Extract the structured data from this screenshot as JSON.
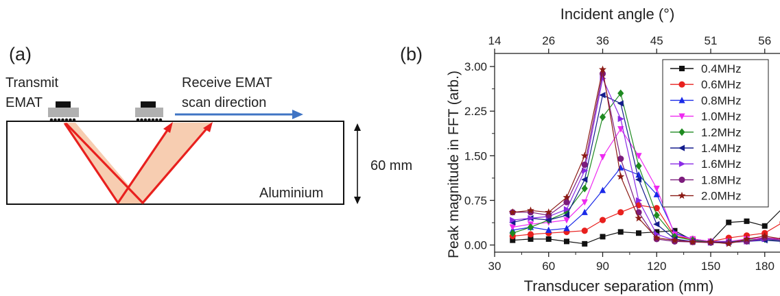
{
  "panel_a": {
    "label": "(a)",
    "transmit_label_line1": "Transmit",
    "transmit_label_line2": "EMAT",
    "receive_label_line1": "Receive EMAT",
    "receive_label_line2": "scan direction",
    "thickness_label": "60 mm",
    "material_label": "Aluminium",
    "colors": {
      "ray": "#e8201e",
      "beam_fill": "#f6c8a8",
      "scan_arrow": "#3f74c4",
      "emat_housing": "#b0b0b0",
      "magnet": "#111111"
    }
  },
  "panel_b": {
    "label": "(b)"
  },
  "chart_data": {
    "type": "line",
    "xlabel": "Transducer separation (mm)",
    "ylabel": "Peak magnitude in FFT (arb.)",
    "top_axis_label": "Incident angle (°)",
    "xlim": [
      30,
      190
    ],
    "ylim": [
      -0.12,
      3.22
    ],
    "x_ticks": [
      "30",
      "60",
      "90",
      "120",
      "150",
      "180"
    ],
    "y_ticks": [
      "0.00",
      "0.75",
      "1.50",
      "2.25",
      "3.00"
    ],
    "top_ticks": [
      {
        "label": "14",
        "x": 30
      },
      {
        "label": "26",
        "x": 60
      },
      {
        "label": "36",
        "x": 90
      },
      {
        "label": "45",
        "x": 120
      },
      {
        "label": "51",
        "x": 150
      },
      {
        "label": "56",
        "x": 180
      }
    ],
    "legend_position": "top-right",
    "x": [
      40,
      50,
      60,
      70,
      80,
      90,
      100,
      110,
      120,
      130,
      140,
      150,
      160,
      170,
      180,
      190
    ],
    "series": [
      {
        "name": "0.4MHz",
        "color": "#111111",
        "marker": "square",
        "values": [
          0.08,
          0.1,
          0.1,
          0.06,
          0.02,
          0.14,
          0.22,
          0.2,
          0.22,
          0.24,
          0.08,
          0.06,
          0.38,
          0.4,
          0.32,
          0.62
        ]
      },
      {
        "name": "0.6MHz",
        "color": "#e8201e",
        "marker": "circle",
        "values": [
          0.15,
          0.18,
          0.2,
          0.22,
          0.24,
          0.42,
          0.55,
          0.67,
          0.62,
          0.15,
          0.1,
          0.06,
          0.12,
          0.16,
          0.2,
          0.38
        ]
      },
      {
        "name": "0.8MHz",
        "color": "#1a2ae8",
        "marker": "triangle-up",
        "values": [
          0.25,
          0.3,
          0.25,
          0.28,
          0.55,
          0.92,
          1.3,
          1.18,
          0.85,
          0.2,
          0.1,
          0.06,
          0.06,
          0.08,
          0.1,
          0.08
        ]
      },
      {
        "name": "1.0MHz",
        "color": "#ee2af0",
        "marker": "triangle-down",
        "values": [
          0.3,
          0.35,
          0.38,
          0.42,
          0.72,
          1.48,
          1.95,
          1.5,
          0.95,
          0.18,
          0.1,
          0.06,
          0.06,
          0.1,
          0.12,
          0.1
        ]
      },
      {
        "name": "1.2MHz",
        "color": "#1e8a20",
        "marker": "diamond",
        "values": [
          0.2,
          0.3,
          0.42,
          0.55,
          0.95,
          2.15,
          2.55,
          1.33,
          0.5,
          0.14,
          0.08,
          0.05,
          0.05,
          0.08,
          0.1,
          0.06
        ]
      },
      {
        "name": "1.4MHz",
        "color": "#131c8c",
        "marker": "triangle-left",
        "values": [
          0.38,
          0.45,
          0.42,
          0.5,
          1.1,
          2.52,
          2.38,
          1.1,
          0.35,
          0.1,
          0.06,
          0.05,
          0.05,
          0.06,
          0.08,
          0.06
        ]
      },
      {
        "name": "1.6MHz",
        "color": "#8a2ae6",
        "marker": "triangle-right",
        "values": [
          0.42,
          0.45,
          0.48,
          0.6,
          1.25,
          2.8,
          2.12,
          0.75,
          0.18,
          0.08,
          0.06,
          0.04,
          0.04,
          0.06,
          0.1,
          0.08
        ]
      },
      {
        "name": "1.8MHz",
        "color": "#7c1c7c",
        "marker": "circle",
        "values": [
          0.55,
          0.55,
          0.5,
          0.72,
          1.35,
          2.88,
          1.45,
          0.55,
          0.1,
          0.06,
          0.05,
          0.04,
          0.04,
          0.06,
          0.12,
          0.08
        ]
      },
      {
        "name": "2.0MHz",
        "color": "#8b1a14",
        "marker": "star",
        "values": [
          0.55,
          0.58,
          0.55,
          0.8,
          1.5,
          2.95,
          1.15,
          0.45,
          0.12,
          0.08,
          0.05,
          0.05,
          0.02,
          0.1,
          0.15,
          0.1
        ]
      }
    ]
  }
}
